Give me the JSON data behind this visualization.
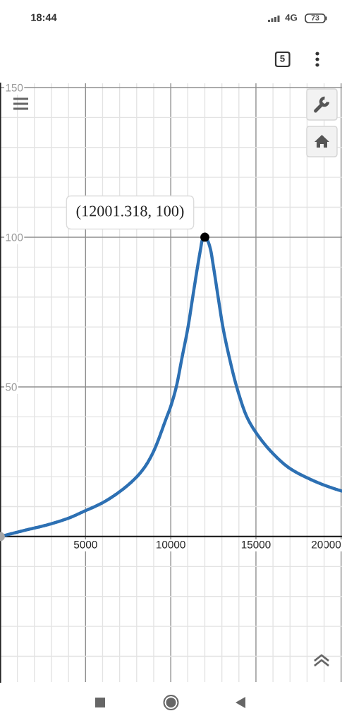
{
  "chart_data": {
    "type": "line",
    "annotations": [
      {
        "text": "(12001.318, 100)",
        "x": 12001.318,
        "y": 100
      },
      "18:44",
      "4G",
      "73",
      "5"
    ],
    "series": [
      {
        "color": "#2d70b3",
        "x": [
          0,
          1370,
          2750,
          3980,
          4940,
          5970,
          6980,
          7980,
          8520,
          8980,
          9770,
          10000,
          10325,
          10670,
          11015,
          11290,
          11570,
          11750,
          11850,
          12001.318,
          12150,
          12330,
          12510,
          12780,
          13060,
          13430,
          13870,
          14465,
          14970,
          15970,
          16980,
          17980,
          18950,
          19980,
          20040
        ],
        "values": [
          0,
          2,
          3.9,
          6.1,
          8.5,
          11.2,
          14.9,
          19.8,
          23.6,
          28.3,
          40,
          43.5,
          50,
          60,
          70,
          80,
          90,
          96,
          99,
          100,
          99,
          96,
          90,
          80,
          70,
          60,
          50,
          40,
          35,
          27.9,
          22.8,
          19.7,
          17.3,
          15.3,
          15.2
        ]
      },
      {
        "type": "scatter",
        "color": "#000000",
        "marker": "circle",
        "x": [
          12001.318
        ],
        "values": [
          100
        ]
      },
      {
        "type": "scatter",
        "color": "#a6a6a6",
        "marker": "circle",
        "x": [
          0
        ],
        "values": [
          0
        ]
      }
    ],
    "xlim": [
      -20,
      20050
    ],
    "ylim": [
      -48.6,
      151.4
    ],
    "xticks": [
      5000,
      10000,
      15000,
      20000
    ],
    "yticks": [
      50,
      100,
      150
    ],
    "grid": true,
    "line_style": "solid"
  }
}
